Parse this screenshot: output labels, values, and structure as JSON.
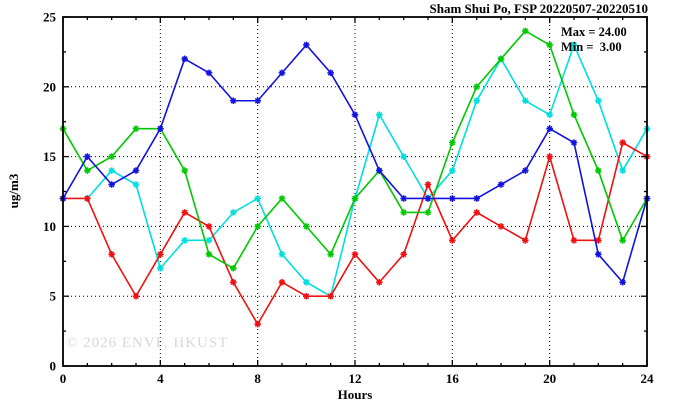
{
  "header": {
    "title": "Sham Shui Po, FSP 20220507-20220510"
  },
  "annotation": {
    "max": "Max = 24.00",
    "min": "Min =  3.00"
  },
  "watermark": {
    "text": "© 2026 ENVF, HKUST",
    "color": "#d8d8d8"
  },
  "axis": {
    "xlabel": "Hours",
    "ylabel": "ug/m3"
  },
  "chart_data": {
    "type": "line",
    "title": "Sham Shui Po, FSP 20220507-20220510",
    "xlabel": "Hours",
    "ylabel": "ug/m3",
    "xlim": [
      0,
      24
    ],
    "ylim": [
      0,
      25
    ],
    "x_ticks": [
      0,
      4,
      8,
      12,
      16,
      20,
      24
    ],
    "y_ticks": [
      0,
      5,
      10,
      15,
      20,
      25
    ],
    "x_minor_step": 1,
    "y_minor_step": 2.5,
    "grid": {
      "style": "dotted",
      "x_lines": [
        4,
        8,
        12,
        16,
        20
      ],
      "y_lines": [
        5,
        10,
        15,
        20
      ]
    },
    "stats": {
      "max": 24.0,
      "min": 3.0
    },
    "legend": "none",
    "marker": "asterisk",
    "axis_color": "#000000",
    "series": [
      {
        "name": "cyan-series",
        "color": "#00dede",
        "x": [
          1,
          2,
          3,
          4,
          5,
          6,
          7,
          8,
          9,
          10,
          11,
          12,
          13,
          14,
          15,
          16,
          17,
          18,
          19,
          20,
          21,
          22,
          23,
          24
        ],
        "values": [
          12,
          14,
          13,
          7,
          9,
          9,
          11,
          12,
          8,
          6,
          5,
          12,
          18,
          15,
          12,
          14,
          19,
          22,
          19,
          18,
          23,
          19,
          14,
          17
        ]
      },
      {
        "name": "red-series",
        "color": "#ee1111",
        "x": [
          0,
          1,
          2,
          3,
          4,
          5,
          6,
          7,
          8,
          9,
          10,
          11,
          12,
          13,
          14,
          15,
          16,
          17,
          18,
          19,
          20,
          21,
          22,
          23,
          24
        ],
        "values": [
          12,
          12,
          8,
          5,
          8,
          11,
          10,
          6,
          3,
          6,
          5,
          5,
          8,
          6,
          8,
          13,
          9,
          11,
          10,
          9,
          15,
          9,
          9,
          16,
          15
        ]
      },
      {
        "name": "green-series",
        "color": "#00c800",
        "x": [
          0,
          1,
          2,
          3,
          4,
          5,
          6,
          7,
          8,
          9,
          10,
          11,
          12,
          13,
          14,
          15,
          16,
          17,
          18,
          19,
          20,
          21,
          22,
          23,
          24
        ],
        "values": [
          17,
          14,
          15,
          17,
          17,
          14,
          8,
          7,
          10,
          12,
          10,
          8,
          12,
          14,
          11,
          11,
          16,
          20,
          22,
          24,
          23,
          18,
          14,
          9,
          12
        ]
      },
      {
        "name": "blue-series",
        "color": "#1212e0",
        "x": [
          0,
          1,
          2,
          3,
          4,
          5,
          6,
          7,
          8,
          9,
          10,
          11,
          12,
          13,
          14,
          15,
          16,
          17,
          18,
          19,
          20,
          21,
          22,
          23,
          24
        ],
        "values": [
          12,
          15,
          13,
          14,
          17,
          22,
          21,
          19,
          19,
          21,
          23,
          21,
          18,
          14,
          12,
          12,
          12,
          12,
          13,
          14,
          17,
          16,
          8,
          6,
          12
        ]
      }
    ]
  }
}
